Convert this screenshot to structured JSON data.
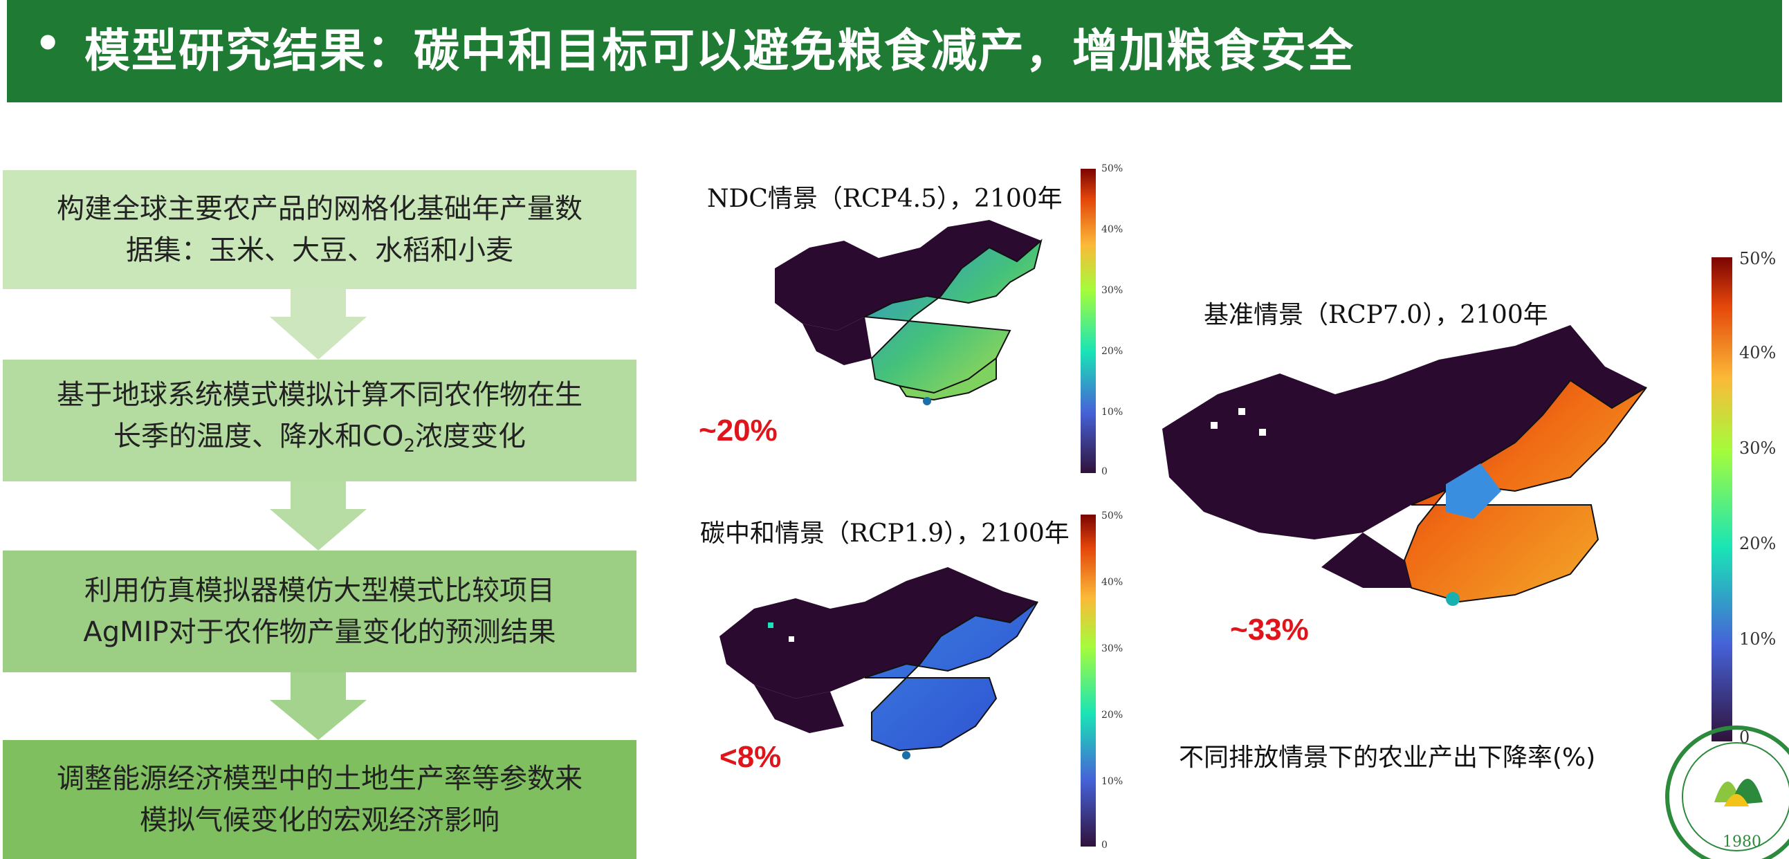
{
  "header": {
    "bullet": "•",
    "title": "模型研究结果：碳中和目标可以避免粮食减产，增加粮食安全"
  },
  "steps": [
    {
      "line1": "构建全球主要农产品的网格化基础年产量数",
      "line2": "据集：玉米、大豆、水稻和小麦"
    },
    {
      "line1": "基于地球系统模式模拟计算不同农作物在生",
      "line2_pre": "长季的温度、降水和CO",
      "line2_sub": "2",
      "line2_post": "浓度变化"
    },
    {
      "line1": "利用仿真模拟器模仿大型模式比较项目",
      "line2": "AgMIP对于农作物产量变化的预测结果"
    },
    {
      "line1": "调整能源经济模型中的土地生产率等参数来",
      "line2": "模拟气候变化的宏观经济影响"
    }
  ],
  "maps": {
    "ndc": {
      "title": "NDC情景（RCP4.5），2100年",
      "value": "~20%"
    },
    "neutral": {
      "title": "碳中和情景（RCP1.9），2100年",
      "value": "<8%"
    },
    "baseline": {
      "title": "基准情景（RCP7.0），2100年",
      "value": "~33%"
    }
  },
  "colorbar": {
    "ticks": [
      "50%",
      "40%",
      "30%",
      "20%",
      "10%",
      "0"
    ]
  },
  "caption": "不同排放情景下的农业产出下降率(%)",
  "logo": {
    "year": "1980"
  },
  "colors": {
    "header_bg": "#1f7a33",
    "highlight": "#e0141b"
  }
}
